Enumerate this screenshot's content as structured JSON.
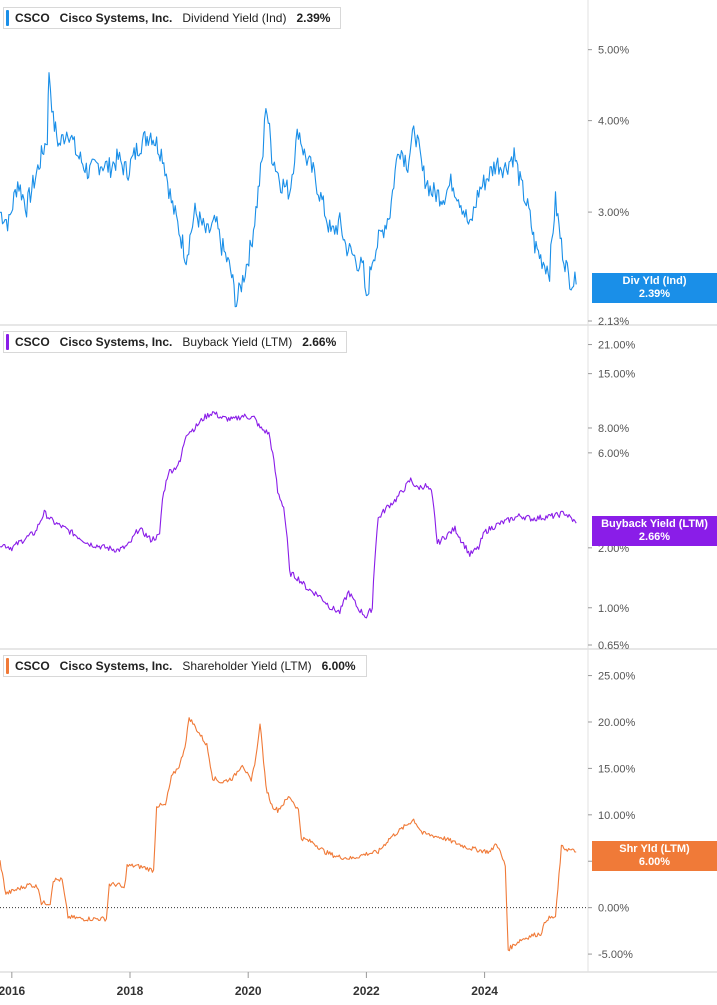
{
  "chart_data": [
    {
      "type": "line",
      "ticker": "CSCO",
      "company": "Cisco Systems, Inc.",
      "series_name": "Dividend Yield (Ind)",
      "legend_value": "2.39%",
      "tag_label": "Div Yld (Ind)",
      "tag_value": "2.39%",
      "tag_partial": "2.4",
      "color": "#1a8fe8",
      "scale": "log",
      "ylim": [
        2.13,
        5.7
      ],
      "yticks": [
        5.0,
        4.0,
        3.0,
        2.13
      ],
      "ytick_labels": [
        "5.00%",
        "4.00%",
        "3.00%",
        "2.13%"
      ],
      "last_value": 2.39,
      "points": [
        [
          2015.8,
          3.0
        ],
        [
          2015.95,
          2.9
        ],
        [
          2016.1,
          3.3
        ],
        [
          2016.25,
          3.05
        ],
        [
          2016.4,
          3.35
        ],
        [
          2016.6,
          3.8
        ],
        [
          2016.63,
          4.7
        ],
        [
          2016.7,
          4.0
        ],
        [
          2016.8,
          3.7
        ],
        [
          2016.95,
          3.9
        ],
        [
          2017.1,
          3.6
        ],
        [
          2017.3,
          3.4
        ],
        [
          2017.5,
          3.5
        ],
        [
          2017.65,
          3.45
        ],
        [
          2017.8,
          3.55
        ],
        [
          2017.95,
          3.4
        ],
        [
          2018.15,
          3.7
        ],
        [
          2018.35,
          3.85
        ],
        [
          2018.55,
          3.6
        ],
        [
          2018.7,
          3.1
        ],
        [
          2018.85,
          2.8
        ],
        [
          2018.95,
          2.6
        ],
        [
          2019.1,
          3.0
        ],
        [
          2019.3,
          2.8
        ],
        [
          2019.45,
          2.9
        ],
        [
          2019.55,
          2.7
        ],
        [
          2019.7,
          2.5
        ],
        [
          2019.8,
          2.25
        ],
        [
          2019.95,
          2.5
        ],
        [
          2020.05,
          2.7
        ],
        [
          2020.15,
          3.1
        ],
        [
          2020.25,
          3.6
        ],
        [
          2020.3,
          4.25
        ],
        [
          2020.4,
          3.6
        ],
        [
          2020.55,
          3.3
        ],
        [
          2020.7,
          3.2
        ],
        [
          2020.85,
          3.9
        ],
        [
          2020.95,
          3.6
        ],
        [
          2021.1,
          3.4
        ],
        [
          2021.25,
          3.1
        ],
        [
          2021.4,
          2.8
        ],
        [
          2021.55,
          2.9
        ],
        [
          2021.65,
          2.7
        ],
        [
          2021.8,
          2.6
        ],
        [
          2021.95,
          2.5
        ],
        [
          2022.0,
          2.25
        ],
        [
          2022.1,
          2.6
        ],
        [
          2022.25,
          2.8
        ],
        [
          2022.4,
          3.0
        ],
        [
          2022.55,
          3.7
        ],
        [
          2022.7,
          3.5
        ],
        [
          2022.82,
          3.9
        ],
        [
          2022.95,
          3.4
        ],
        [
          2023.1,
          3.2
        ],
        [
          2023.3,
          3.15
        ],
        [
          2023.45,
          3.3
        ],
        [
          2023.6,
          3.1
        ],
        [
          2023.75,
          2.85
        ],
        [
          2023.9,
          3.2
        ],
        [
          2024.05,
          3.35
        ],
        [
          2024.2,
          3.5
        ],
        [
          2024.35,
          3.45
        ],
        [
          2024.5,
          3.6
        ],
        [
          2024.6,
          3.3
        ],
        [
          2024.75,
          3.0
        ],
        [
          2024.85,
          2.7
        ],
        [
          2024.95,
          2.6
        ],
        [
          2025.1,
          2.5
        ],
        [
          2025.2,
          3.1
        ],
        [
          2025.3,
          2.7
        ],
        [
          2025.42,
          2.45
        ],
        [
          2025.55,
          2.39
        ]
      ]
    },
    {
      "type": "line",
      "ticker": "CSCO",
      "company": "Cisco Systems, Inc.",
      "series_name": "Buyback Yield (LTM)",
      "legend_value": "2.66%",
      "tag_label": "Buyback Yield (LTM)",
      "tag_value": "2.66%",
      "color": "#8a1de8",
      "scale": "log",
      "ylim": [
        0.65,
        24
      ],
      "yticks": [
        21.0,
        15.0,
        8.0,
        6.0,
        2.0,
        1.0,
        0.65
      ],
      "ytick_labels": [
        "21.00%",
        "15.00%",
        "8.00%",
        "6.00%",
        "2.00%",
        "1.00%",
        "0.65%"
      ],
      "last_value": 2.66,
      "points": [
        [
          2015.8,
          2.1
        ],
        [
          2016.0,
          2.0
        ],
        [
          2016.2,
          2.2
        ],
        [
          2016.4,
          2.4
        ],
        [
          2016.55,
          3.0
        ],
        [
          2016.7,
          2.7
        ],
        [
          2016.9,
          2.5
        ],
        [
          2017.1,
          2.3
        ],
        [
          2017.3,
          2.1
        ],
        [
          2017.6,
          2.0
        ],
        [
          2017.8,
          1.95
        ],
        [
          2017.9,
          2.0
        ],
        [
          2018.0,
          2.1
        ],
        [
          2018.15,
          2.5
        ],
        [
          2018.35,
          2.2
        ],
        [
          2018.5,
          2.3
        ],
        [
          2018.55,
          3.5
        ],
        [
          2018.65,
          4.8
        ],
        [
          2018.75,
          5.0
        ],
        [
          2018.85,
          5.4
        ],
        [
          2018.95,
          7.5
        ],
        [
          2019.1,
          8.0
        ],
        [
          2019.25,
          9.0
        ],
        [
          2019.4,
          9.6
        ],
        [
          2019.55,
          9.0
        ],
        [
          2019.75,
          8.8
        ],
        [
          2019.9,
          9.2
        ],
        [
          2020.1,
          9.0
        ],
        [
          2020.2,
          8.0
        ],
        [
          2020.35,
          7.5
        ],
        [
          2020.5,
          3.8
        ],
        [
          2020.6,
          3.2
        ],
        [
          2020.7,
          1.5
        ],
        [
          2020.85,
          1.4
        ],
        [
          2021.0,
          1.25
        ],
        [
          2021.2,
          1.15
        ],
        [
          2021.4,
          1.0
        ],
        [
          2021.55,
          0.95
        ],
        [
          2021.7,
          1.2
        ],
        [
          2021.85,
          1.0
        ],
        [
          2022.0,
          0.9
        ],
        [
          2022.1,
          1.0
        ],
        [
          2022.2,
          2.8
        ],
        [
          2022.35,
          3.2
        ],
        [
          2022.5,
          3.5
        ],
        [
          2022.65,
          4.0
        ],
        [
          2022.75,
          4.4
        ],
        [
          2022.85,
          4.0
        ],
        [
          2023.0,
          4.1
        ],
        [
          2023.1,
          3.8
        ],
        [
          2023.2,
          2.1
        ],
        [
          2023.35,
          2.3
        ],
        [
          2023.5,
          2.5
        ],
        [
          2023.6,
          2.2
        ],
        [
          2023.75,
          1.85
        ],
        [
          2023.9,
          2.0
        ],
        [
          2024.0,
          2.4
        ],
        [
          2024.2,
          2.6
        ],
        [
          2024.4,
          2.75
        ],
        [
          2024.6,
          2.9
        ],
        [
          2024.8,
          2.8
        ],
        [
          2025.0,
          2.85
        ],
        [
          2025.2,
          2.9
        ],
        [
          2025.35,
          3.0
        ],
        [
          2025.55,
          2.66
        ]
      ]
    },
    {
      "type": "line",
      "ticker": "CSCO",
      "company": "Cisco Systems, Inc.",
      "series_name": "Shareholder Yield (LTM)",
      "legend_value": "6.00%",
      "tag_label": "Shr Yld (LTM)",
      "tag_value": "6.00%",
      "color": "#f07a38",
      "scale": "linear",
      "ylim": [
        -6.5,
        27
      ],
      "yticks": [
        25,
        20,
        15,
        10,
        5,
        0,
        -5
      ],
      "ytick_labels": [
        "25.00%",
        "20.00%",
        "15.00%",
        "10.00%",
        "5.00%",
        "0.00%",
        "-5.00%"
      ],
      "zero_line": true,
      "last_value": 6.0,
      "points": [
        [
          2015.8,
          5.0
        ],
        [
          2015.9,
          1.5
        ],
        [
          2016.1,
          2.0
        ],
        [
          2016.3,
          2.5
        ],
        [
          2016.45,
          2.2
        ],
        [
          2016.5,
          0.5
        ],
        [
          2016.65,
          0.5
        ],
        [
          2016.7,
          3.0
        ],
        [
          2016.85,
          3.0
        ],
        [
          2016.95,
          -1.0
        ],
        [
          2017.2,
          -1.2
        ],
        [
          2017.45,
          -1.2
        ],
        [
          2017.6,
          -1.2
        ],
        [
          2017.65,
          2.5
        ],
        [
          2017.8,
          2.5
        ],
        [
          2017.9,
          2.0
        ],
        [
          2017.95,
          4.5
        ],
        [
          2018.1,
          4.5
        ],
        [
          2018.25,
          4.3
        ],
        [
          2018.4,
          4.0
        ],
        [
          2018.45,
          11.0
        ],
        [
          2018.6,
          11.0
        ],
        [
          2018.7,
          14.0
        ],
        [
          2018.85,
          15.5
        ],
        [
          2018.95,
          18.0
        ],
        [
          2019.0,
          20.5
        ],
        [
          2019.15,
          19.0
        ],
        [
          2019.3,
          17.5
        ],
        [
          2019.4,
          14.0
        ],
        [
          2019.55,
          13.5
        ],
        [
          2019.75,
          14.0
        ],
        [
          2019.9,
          15.5
        ],
        [
          2020.05,
          13.5
        ],
        [
          2020.15,
          17.0
        ],
        [
          2020.2,
          20.0
        ],
        [
          2020.3,
          13.0
        ],
        [
          2020.4,
          11.0
        ],
        [
          2020.5,
          10.5
        ],
        [
          2020.7,
          12.0
        ],
        [
          2020.85,
          10.5
        ],
        [
          2020.9,
          7.5
        ],
        [
          2021.1,
          7.0
        ],
        [
          2021.3,
          6.0
        ],
        [
          2021.5,
          5.5
        ],
        [
          2021.75,
          5.3
        ],
        [
          2022.0,
          5.8
        ],
        [
          2022.2,
          6.0
        ],
        [
          2022.4,
          7.5
        ],
        [
          2022.6,
          8.5
        ],
        [
          2022.8,
          9.5
        ],
        [
          2022.95,
          8.0
        ],
        [
          2023.1,
          7.8
        ],
        [
          2023.3,
          7.5
        ],
        [
          2023.5,
          7.0
        ],
        [
          2023.7,
          6.5
        ],
        [
          2023.9,
          6.2
        ],
        [
          2024.1,
          6.0
        ],
        [
          2024.2,
          7.0
        ],
        [
          2024.35,
          4.5
        ],
        [
          2024.4,
          -4.5
        ],
        [
          2024.6,
          -3.5
        ],
        [
          2024.8,
          -3.0
        ],
        [
          2024.95,
          -2.8
        ],
        [
          2025.05,
          -1.2
        ],
        [
          2025.2,
          -1.0
        ],
        [
          2025.3,
          6.5
        ],
        [
          2025.4,
          6.3
        ],
        [
          2025.55,
          6.0
        ]
      ]
    }
  ],
  "x_axis": {
    "range": [
      2015.8,
      2025.75
    ],
    "ticks": [
      2016,
      2018,
      2020,
      2022,
      2024
    ],
    "labels": [
      "2016",
      "2018",
      "2020",
      "2022",
      "2024"
    ]
  }
}
